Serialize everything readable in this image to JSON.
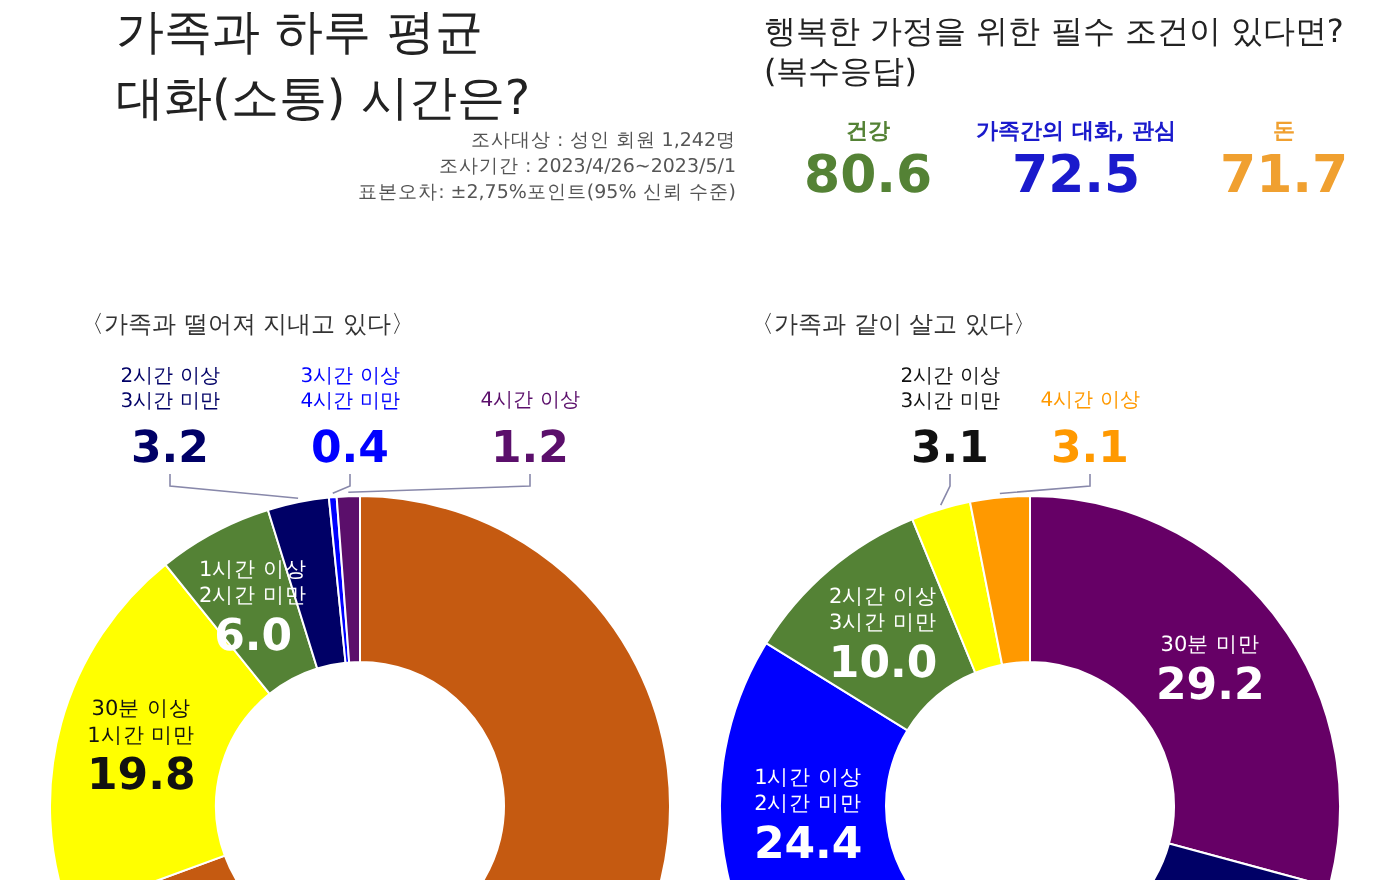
{
  "chart_data": [
    {
      "type": "donut",
      "title": "가족과 하루 평균\n대화(소통) 시간은?",
      "annotations": [
        "조사대상 : 성인 회원 1,242명",
        "조사기간 : 2023/4/26~2023/5/1",
        "표본오차: ±2,75%포인트(95% 신뢰 수준)"
      ],
      "subtitle": "〈가족과 떨어져 지내고 있다〉",
      "categories": [
        null,
        "30분 이상\n1시간 미만",
        "1시간 이상\n2시간 미만",
        "2시간 이상\n3시간 미만",
        "3시간 이상\n4시간 미만",
        "4시간 이상"
      ],
      "values": [
        69.4,
        19.8,
        6.0,
        3.2,
        0.4,
        1.2
      ],
      "value_labels": [
        null,
        "19.8",
        "6.0",
        "3.2",
        "0.4",
        "1.2"
      ],
      "colors": [
        "#c55a11",
        "#ffff00",
        "#548235",
        "#000066",
        "#0000ff",
        "#5b0f6b"
      ],
      "legend": false
    },
    {
      "type": "other",
      "title": "행복한 가정을 위한 필수 조건이 있다면?\n(복수응답)",
      "categories": [
        "건강",
        "가족간의 대화, 관심",
        "돈"
      ],
      "values": [
        80.6,
        72.5,
        71.7
      ],
      "colors": [
        "#548235",
        "#1a1acc",
        "#f0a030"
      ],
      "data_labels": true
    },
    {
      "type": "donut",
      "subtitle": "〈가족과 같이 살고 있다〉",
      "categories": [
        "30분 미만",
        null,
        "1시간 이상\n2시간 미만",
        "2시간 이상\n3시간 미만",
        "2시간 이상\n3시간 미만",
        "4시간 이상"
      ],
      "values": [
        29.2,
        30.2,
        24.4,
        10.0,
        3.1,
        3.1
      ],
      "value_labels": [
        "29.2",
        null,
        "24.4",
        "10.0",
        "3.1",
        "3.1"
      ],
      "colors": [
        "#660066",
        "#000066",
        "#0000ff",
        "#548235",
        "#ffff00",
        "#ff9900"
      ],
      "legend": false
    }
  ]
}
